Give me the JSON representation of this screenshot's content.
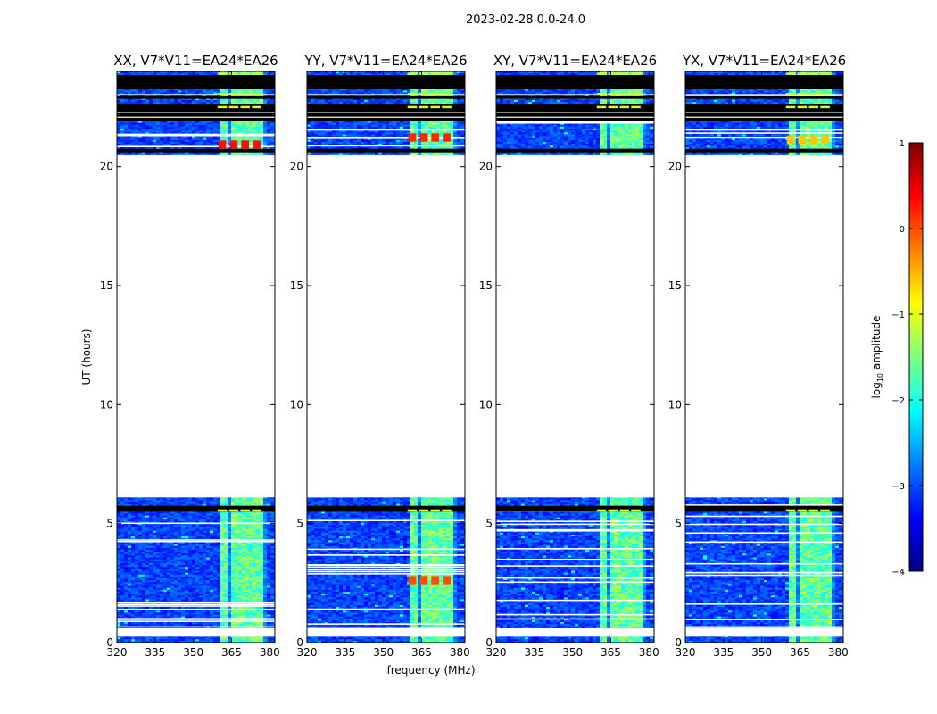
{
  "figure": {
    "suptitle": "2023-02-28 0.0-24.0",
    "xlabel": "frequency (MHz)",
    "ylabel": "UT (hours)"
  },
  "colors": {
    "background": "#ffffff",
    "axes": "#000000",
    "flag_black": "#000000",
    "colormap": [
      "#00007f",
      "#0000ff",
      "#007fff",
      "#00ffff",
      "#7fff7f",
      "#ffff00",
      "#ff7f00",
      "#ff0000",
      "#7f0000"
    ]
  },
  "chart_data": [
    {
      "type": "heatmap",
      "title": "XX, V7*V11=EA24*EA26",
      "xlim": [
        320,
        382
      ],
      "ylim": [
        0,
        24
      ],
      "xticks": [
        320,
        335,
        350,
        365,
        380
      ],
      "yticks": [
        0,
        5,
        10,
        15,
        20
      ],
      "data_time_ranges": [
        [
          0,
          6.1
        ],
        [
          20.5,
          24
        ]
      ],
      "bright_channel_band_mhz": [
        359.5,
        377.5
      ],
      "rfi_highlights": [
        {
          "t": 20.9,
          "value": 0.3
        }
      ]
    },
    {
      "type": "heatmap",
      "title": "YY, V7*V11=EA24*EA26",
      "xlim": [
        320,
        382
      ],
      "ylim": [
        0,
        24
      ],
      "xticks": [
        320,
        335,
        350,
        365,
        380
      ],
      "yticks": [
        0,
        5,
        10,
        15,
        20
      ],
      "data_time_ranges": [
        [
          0,
          6.1
        ],
        [
          20.5,
          24
        ]
      ],
      "bright_channel_band_mhz": [
        359.5,
        377.5
      ],
      "rfi_highlights": [
        {
          "t": 21.2,
          "value": 0.2
        },
        {
          "t": 2.6,
          "value": 0.0
        }
      ]
    },
    {
      "type": "heatmap",
      "title": "XY, V7*V11=EA24*EA26",
      "xlim": [
        320,
        382
      ],
      "ylim": [
        0,
        24
      ],
      "xticks": [
        320,
        335,
        350,
        365,
        380
      ],
      "yticks": [
        0,
        5,
        10,
        15,
        20
      ],
      "data_time_ranges": [
        [
          0,
          6.1
        ],
        [
          20.5,
          24
        ]
      ],
      "bright_channel_band_mhz": [
        359.5,
        377.5
      ],
      "rfi_highlights": []
    },
    {
      "type": "heatmap",
      "title": "YX, V7*V11=EA24*EA26",
      "xlim": [
        320,
        382
      ],
      "ylim": [
        0,
        24
      ],
      "xticks": [
        320,
        335,
        350,
        365,
        380
      ],
      "yticks": [
        0,
        5,
        10,
        15,
        20
      ],
      "data_time_ranges": [
        [
          0,
          6.1
        ],
        [
          20.5,
          24
        ]
      ],
      "bright_channel_band_mhz": [
        359.5,
        377.5
      ],
      "rfi_highlights": [
        {
          "t": 21.1,
          "value": -0.6
        }
      ]
    }
  ],
  "colorbar": {
    "label": "log",
    "label_sub": "10",
    "label_rest": " amplitude",
    "range": [
      -4,
      1
    ],
    "ticks": [
      {
        "value": 1,
        "label": "1"
      },
      {
        "value": 0,
        "label": "0"
      },
      {
        "value": -1,
        "label": "−1"
      },
      {
        "value": -2,
        "label": "−2"
      },
      {
        "value": -3,
        "label": "−3"
      },
      {
        "value": -4,
        "label": "−4"
      }
    ]
  }
}
